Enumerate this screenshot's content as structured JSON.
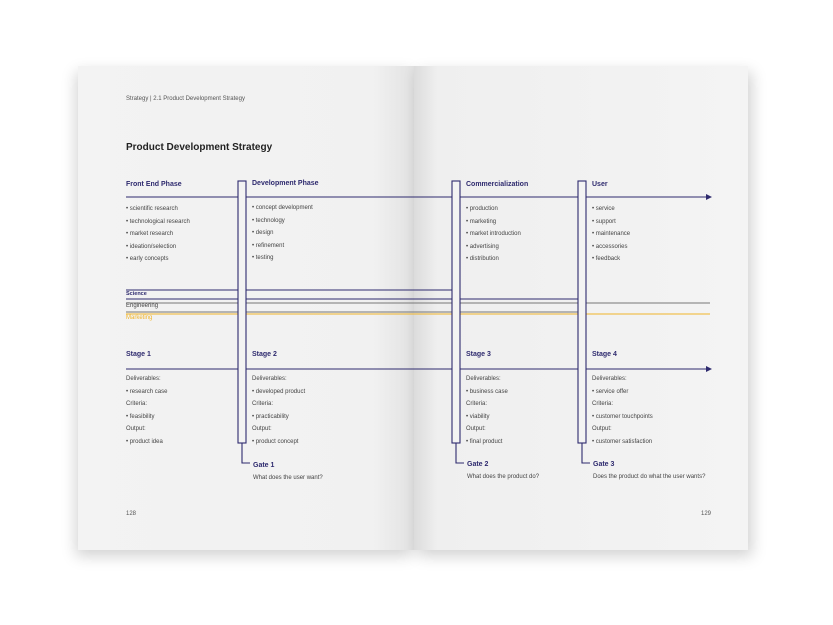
{
  "breadcrumb": "Strategy | 2.1 Product Development Strategy",
  "title": "Product Development Strategy",
  "phases": [
    {
      "name": "Front End Phase",
      "items": [
        "• scientific research",
        "• technological research",
        "• market research",
        "• ideation/selection",
        "• early concepts"
      ]
    },
    {
      "name": "Development Phase",
      "items": [
        "• concept development",
        "• technology",
        "• design",
        "• refinement",
        "• testing"
      ]
    },
    {
      "name": "Commercialization",
      "items": [
        "• production",
        "• marketing",
        "• market introduction",
        "• advertising",
        "• distribution"
      ]
    },
    {
      "name": "User",
      "items": [
        "• service",
        "• support",
        "• maintenance",
        "• accessories",
        "• feedback"
      ]
    }
  ],
  "bands": [
    {
      "name": "Science",
      "color": "#2e2a6e"
    },
    {
      "name": "Engineering",
      "color": "#555555"
    },
    {
      "name": "Marketing",
      "color": "#f0b429"
    }
  ],
  "stages": [
    {
      "name": "Stage 1",
      "lines": [
        "Deliverables:",
        "• research case",
        "Criteria:",
        "• feasibility",
        "Output:",
        "• product idea"
      ]
    },
    {
      "name": "Stage 2",
      "lines": [
        "Deliverables:",
        "• developed product",
        "Criteria:",
        "• practicability",
        "Output:",
        "• product concept"
      ]
    },
    {
      "name": "Stage 3",
      "lines": [
        "Deliverables:",
        "• business case",
        "Criteria:",
        "• viability",
        "Output:",
        "• final product"
      ]
    },
    {
      "name": "Stage 4",
      "lines": [
        "Deliverables:",
        "• service offer",
        "Criteria:",
        "• customer touchpoints",
        "Output:",
        "• customer satisfaction"
      ]
    }
  ],
  "gates": [
    {
      "name": "Gate 1",
      "question": "What does the user want?"
    },
    {
      "name": "Gate 2",
      "question": "What does the product do?"
    },
    {
      "name": "Gate 3",
      "question": "Does the product do what the user wants?"
    }
  ],
  "page_numbers": {
    "left": "128",
    "right": "129"
  },
  "accent_color": "#2e2a6e"
}
